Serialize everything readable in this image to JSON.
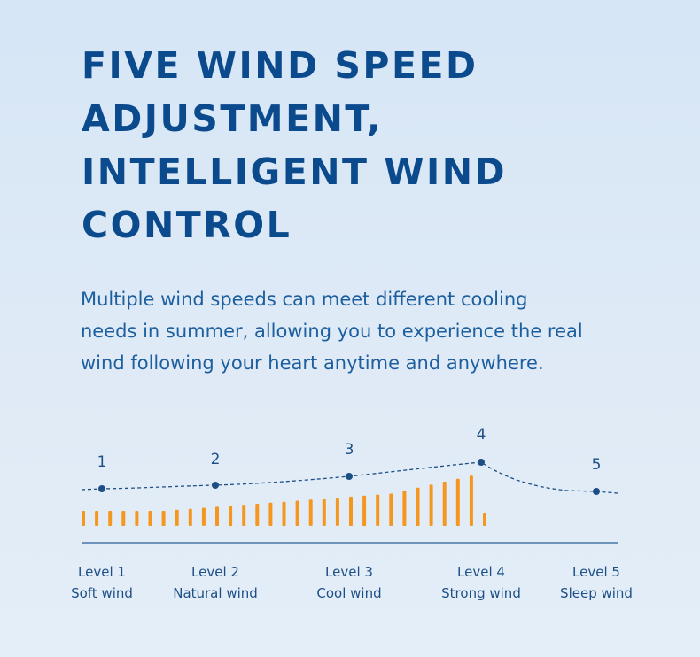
{
  "headline": {
    "lines": [
      "FIVE WIND SPEED",
      "ADJUSTMENT,",
      "INTELLIGENT WIND",
      "CONTROL"
    ]
  },
  "description": {
    "lines": [
      "Multiple wind speeds can meet different cooling",
      "needs in summer, allowing you to experience the real",
      "wind following your heart anytime and anywhere."
    ]
  },
  "colors": {
    "title": "#0b4a8c",
    "text": "#1d5f9e",
    "bar": "#f5961e",
    "line": "#1d4f86",
    "baseline": "#2a5e96"
  },
  "levels": [
    {
      "number": "1",
      "level": "Level 1",
      "mode": "Soft wind"
    },
    {
      "number": "2",
      "level": "Level 2",
      "mode": "Natural wind"
    },
    {
      "number": "3",
      "level": "Level 3",
      "mode": "Cool wind"
    },
    {
      "number": "4",
      "level": "Level 4",
      "mode": "Strong wind"
    },
    {
      "number": "5",
      "level": "Level 5",
      "mode": "Sleep wind"
    }
  ]
}
